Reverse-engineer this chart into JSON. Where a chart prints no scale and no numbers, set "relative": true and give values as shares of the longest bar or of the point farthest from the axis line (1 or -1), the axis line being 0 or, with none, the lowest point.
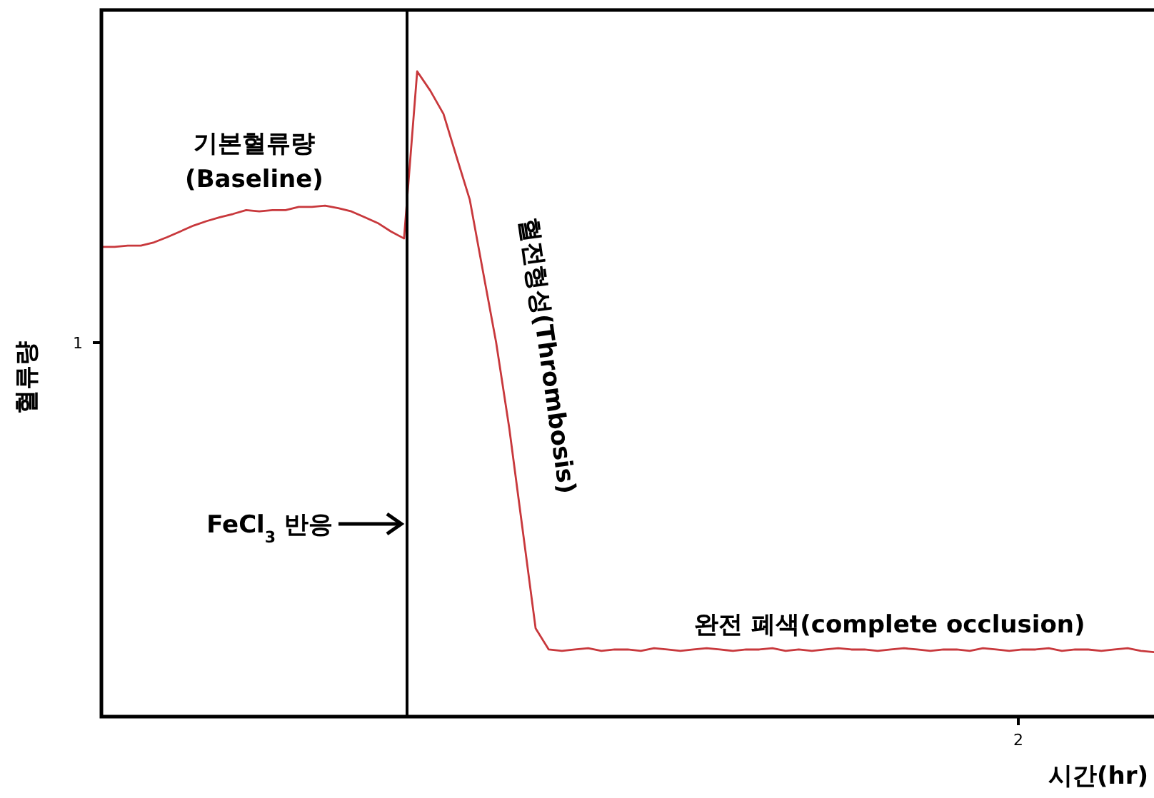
{
  "chart_data": {
    "type": "line",
    "relative": true,
    "xlabel": "시간(hr)",
    "ylabel": "혈류량",
    "categories": [
      null,
      null,
      null,
      null,
      null,
      null,
      null,
      null,
      null,
      null,
      null,
      null,
      null,
      null,
      null,
      null,
      null,
      null,
      null,
      null,
      null,
      null,
      null,
      null,
      null,
      null,
      null,
      null,
      null,
      null,
      null,
      null,
      null,
      null,
      null,
      null,
      null,
      null,
      null,
      null,
      null,
      null,
      null,
      null,
      null,
      null,
      null,
      null,
      null,
      null,
      null,
      null,
      null,
      null,
      null,
      null,
      null,
      null,
      null,
      null,
      null,
      null,
      null,
      null,
      null,
      null,
      null,
      null,
      null,
      null,
      null,
      null,
      null,
      null,
      null,
      null,
      null,
      null,
      null,
      null,
      null
    ],
    "series": [
      {
        "color": "#c8383c",
        "values": [
          0.728,
          0.728,
          0.73,
          0.73,
          0.735,
          0.743,
          0.752,
          0.761,
          0.768,
          0.774,
          0.779,
          0.785,
          0.783,
          0.785,
          0.785,
          0.79,
          0.79,
          0.792,
          0.788,
          0.783,
          0.774,
          0.765,
          0.752,
          0.741,
          1.0,
          0.97,
          0.934,
          0.867,
          0.801,
          0.69,
          0.58,
          0.447,
          0.292,
          0.137,
          0.104,
          0.102,
          0.104,
          0.106,
          0.102,
          0.104,
          0.104,
          0.102,
          0.106,
          0.104,
          0.102,
          0.104,
          0.106,
          0.104,
          0.102,
          0.104,
          0.104,
          0.106,
          0.102,
          0.104,
          0.102,
          0.104,
          0.106,
          0.104,
          0.104,
          0.102,
          0.104,
          0.106,
          0.104,
          0.102,
          0.104,
          0.104,
          0.102,
          0.106,
          0.104,
          0.102,
          0.104,
          0.104,
          0.106,
          0.102,
          0.104,
          0.104,
          0.102,
          0.104,
          0.106,
          0.102,
          0.1
        ]
      }
    ],
    "annotations": [
      "기본혈류량\n(Baseline)",
      "FeCl$_{3}$ 반응",
      "혈전형성(Thrombosis)",
      "완전 폐색(complete occlusion)",
      "1",
      "2"
    ],
    "marker": "none",
    "line_style": "solid"
  }
}
